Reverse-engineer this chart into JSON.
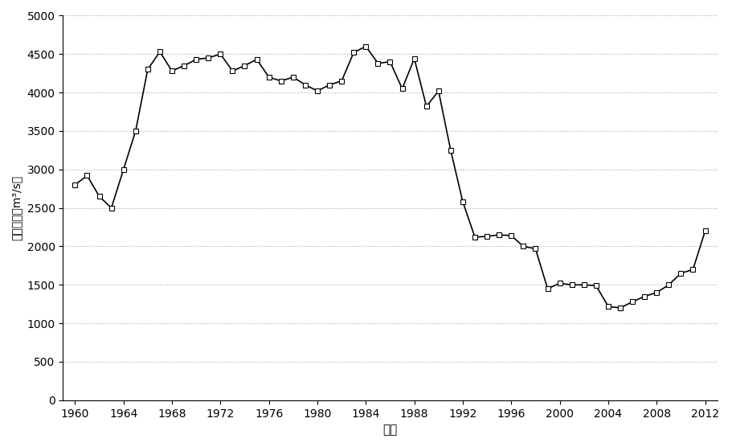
{
  "years": [
    1960,
    1961,
    1962,
    1963,
    1964,
    1965,
    1966,
    1967,
    1968,
    1969,
    1970,
    1971,
    1972,
    1973,
    1974,
    1975,
    1976,
    1977,
    1978,
    1979,
    1980,
    1981,
    1982,
    1983,
    1984,
    1985,
    1986,
    1987,
    1988,
    1989,
    1990,
    1991,
    1992,
    1993,
    1994,
    1995,
    1996,
    1997,
    1998,
    1999,
    2000,
    2001,
    2002,
    2003,
    2004,
    2005,
    2006,
    2007,
    2008,
    2009,
    2010,
    2011,
    2012
  ],
  "values": [
    2800,
    2920,
    2650,
    2500,
    3000,
    3500,
    4300,
    4530,
    4280,
    4350,
    4430,
    4450,
    4500,
    4280,
    4350,
    4430,
    4200,
    4150,
    4200,
    4100,
    4020,
    4100,
    4150,
    4520,
    4600,
    4380,
    4400,
    4050,
    4440,
    3820,
    4020,
    3250,
    2580,
    2120,
    2130,
    2150,
    2140,
    2000,
    1970,
    1450,
    1520,
    1500,
    1500,
    1490,
    1220,
    1200,
    1280,
    1350,
    1400,
    1500,
    1650,
    1700,
    2200
  ],
  "line_color": "#000000",
  "marker": "s",
  "marker_size": 4,
  "marker_facecolor": "white",
  "marker_edgecolor": "#000000",
  "title": "",
  "xlabel": "年份",
  "ylabel": "平滩流量（m³/s）",
  "xlim": [
    1959,
    2013
  ],
  "ylim": [
    0,
    5000
  ],
  "yticks": [
    0,
    500,
    1000,
    1500,
    2000,
    2500,
    3000,
    3500,
    4000,
    4500,
    5000
  ],
  "xticks": [
    1960,
    1964,
    1968,
    1972,
    1976,
    1980,
    1984,
    1988,
    1992,
    1996,
    2000,
    2004,
    2008,
    2012
  ],
  "grid_color": "#000000",
  "grid_alpha": 0.35,
  "grid_linestyle": ":",
  "background_color": "#ffffff",
  "xlabel_fontsize": 11,
  "ylabel_fontsize": 10,
  "tick_fontsize": 10,
  "line_width": 1.2
}
